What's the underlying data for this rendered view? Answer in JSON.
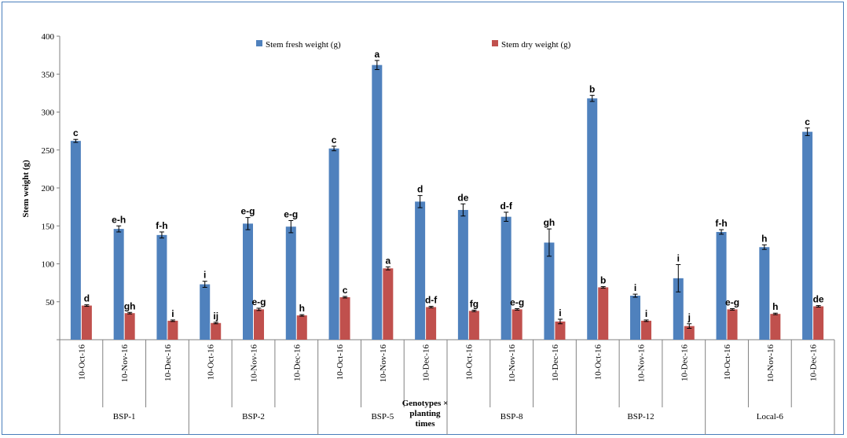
{
  "chart_data": {
    "type": "bar",
    "title": "",
    "ylabel": "Stem weight (g)",
    "xlabel": "Genotypes × planting times",
    "ylim": [
      0,
      400
    ],
    "yticks": [
      0,
      50,
      100,
      150,
      200,
      250,
      300,
      350,
      400
    ],
    "ytick_labels": [
      "",
      "50",
      "100",
      "150",
      "200",
      "250",
      "300",
      "350",
      "400"
    ],
    "legend_position": "top",
    "categories": [
      "10-Oct-16",
      "10-Nov-16",
      "10-Dec-16",
      "10-Oct-16",
      "10-Nov-16",
      "10-Dec-16",
      "10-Oct-16",
      "10-Nov-16",
      "10-Dec-16",
      "10-Oct-16",
      "10-Nov-16",
      "10-Dec-16",
      "10-Oct-16",
      "10-Nov-16",
      "10-Dec-16",
      "10-Oct-16",
      "10-Nov-16",
      "10-Dec-16"
    ],
    "groups": [
      {
        "label": "BSP-1",
        "start": 0,
        "count": 3
      },
      {
        "label": "BSP-2",
        "start": 3,
        "count": 3
      },
      {
        "label": "BSP-5",
        "start": 6,
        "count": 3
      },
      {
        "label": "BSP-8",
        "start": 9,
        "count": 3
      },
      {
        "label": "BSP-12",
        "start": 12,
        "count": 3
      },
      {
        "label": "Local-6",
        "start": 15,
        "count": 3
      }
    ],
    "series": [
      {
        "name": "Stem fresh weight (g)",
        "color": "#4f81bd",
        "values": [
          262,
          146,
          138,
          73,
          153,
          149,
          252,
          362,
          182,
          171,
          162,
          128,
          318,
          58,
          81,
          142,
          122,
          274
        ],
        "errors": [
          2,
          4,
          4,
          4,
          8,
          8,
          3,
          6,
          8,
          8,
          6,
          18,
          4,
          2,
          18,
          3,
          3,
          5
        ],
        "labels": [
          "c",
          "e-h",
          "f-h",
          "i",
          "e-g",
          "e-g",
          "c",
          "a",
          "d",
          "de",
          "d-f",
          "gh",
          "b",
          "i",
          "i",
          "f-h",
          "h",
          "c"
        ]
      },
      {
        "name": "Stem dry weight (g)",
        "color": "#c0504d",
        "values": [
          45,
          35,
          25,
          22,
          40,
          32,
          56,
          94,
          43,
          38,
          40,
          24,
          69,
          25,
          18,
          40,
          34,
          44
        ],
        "errors": [
          1,
          1,
          1,
          1,
          1.5,
          1,
          1,
          2,
          1,
          1,
          1,
          3,
          1,
          1,
          3,
          1,
          1,
          1
        ],
        "labels": [
          "d",
          "gh",
          "i",
          "ij",
          "e-g",
          "h",
          "c",
          "a",
          "d-f",
          "fg",
          "e-g",
          "i",
          "b",
          "i",
          "j",
          "e-g",
          "h",
          "de"
        ]
      }
    ]
  },
  "colors": {
    "fresh": "#4f81bd",
    "dry": "#c0504d",
    "frame_border": "#4a7ebb"
  }
}
